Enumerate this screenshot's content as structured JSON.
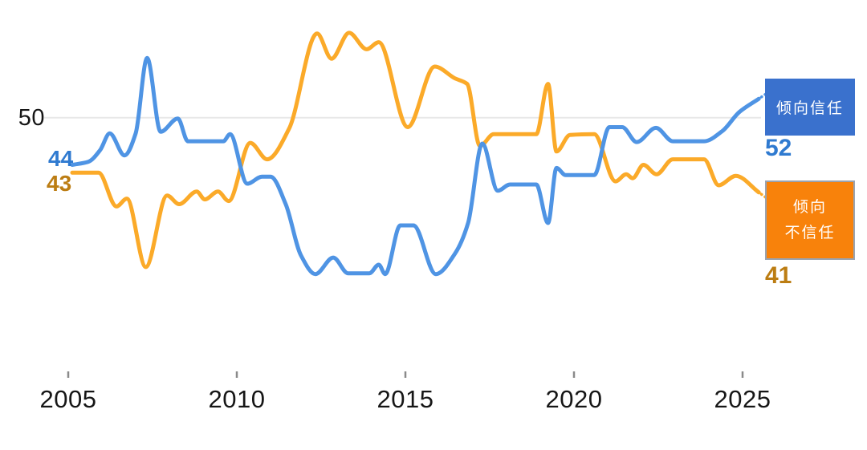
{
  "y_axis": {
    "gridline_label": "50"
  },
  "series_labels": {
    "trust_start": "44",
    "distrust_start": "43",
    "trust_end": "52",
    "distrust_end": "41"
  },
  "legend": {
    "trust": "倾向信任",
    "distrust_line1": "倾向",
    "distrust_line2": "不信任"
  },
  "colors": {
    "trust_line": "#4f94e4",
    "distrust_line": "#fbaa29",
    "trust_box": "#3a71cd",
    "distrust_box": "#f8820b",
    "distrust_box_border": "#9aa3b0",
    "trust_value_text": "#2f7ad0",
    "distrust_value_text": "#bc7d13",
    "axis_text": "#161616",
    "gridline": "#e8e8e8",
    "tick": "#8a8a8a"
  },
  "chart_data": {
    "type": "line",
    "title": "",
    "xlabel": "",
    "ylabel": "",
    "x_ticks": [
      2005,
      2010,
      2015,
      2020,
      2025
    ],
    "x_tick_labels": [
      "2005",
      "2010",
      "2015",
      "2020",
      "2025"
    ],
    "x_range": [
      2005.1,
      2025.5
    ],
    "ylim_visible": [
      29,
      62
    ],
    "y_gridline": 50,
    "grid": "single horizontal gridline at y=50",
    "legend_position": "right",
    "series": [
      {
        "name": "倾向不信任",
        "color_key": "distrust_line",
        "start_value": 43,
        "end_value": 41,
        "points": [
          [
            2005.12,
            43.0
          ],
          [
            2005.9,
            43.0
          ],
          [
            2006.43,
            38.7
          ],
          [
            2006.74,
            39.7
          ],
          [
            2007.3,
            31.0
          ],
          [
            2007.93,
            40.1
          ],
          [
            2008.29,
            39.0
          ],
          [
            2008.81,
            40.6
          ],
          [
            2009.05,
            39.6
          ],
          [
            2009.44,
            40.6
          ],
          [
            2009.76,
            39.4
          ],
          [
            2010.4,
            46.8
          ],
          [
            2010.9,
            44.7
          ],
          [
            2011.55,
            48.6
          ],
          [
            2012.38,
            60.7
          ],
          [
            2012.81,
            57.5
          ],
          [
            2013.33,
            60.8
          ],
          [
            2013.85,
            58.7
          ],
          [
            2014.21,
            59.6
          ],
          [
            2015.07,
            48.8
          ],
          [
            2015.87,
            56.5
          ],
          [
            2016.47,
            55.0
          ],
          [
            2016.83,
            54.3
          ],
          [
            2017.21,
            46.4
          ],
          [
            2017.62,
            47.9
          ],
          [
            2018.88,
            47.9
          ],
          [
            2019.23,
            54.3
          ],
          [
            2019.48,
            45.7
          ],
          [
            2019.88,
            47.8
          ],
          [
            2020.6,
            47.9
          ],
          [
            2021.23,
            41.9
          ],
          [
            2021.55,
            42.8
          ],
          [
            2021.74,
            42.3
          ],
          [
            2022.06,
            44.0
          ],
          [
            2022.45,
            42.8
          ],
          [
            2022.93,
            44.7
          ],
          [
            2023.86,
            44.7
          ],
          [
            2024.29,
            41.4
          ],
          [
            2024.8,
            42.6
          ],
          [
            2025.48,
            40.5
          ]
        ]
      },
      {
        "name": "倾向信任",
        "color_key": "trust_line",
        "start_value": 44,
        "end_value": 52,
        "points": [
          [
            2005.12,
            44.0
          ],
          [
            2005.6,
            44.4
          ],
          [
            2005.95,
            45.9
          ],
          [
            2006.23,
            48.0
          ],
          [
            2006.67,
            45.2
          ],
          [
            2007.0,
            48.0
          ],
          [
            2007.34,
            57.6
          ],
          [
            2007.74,
            48.2
          ],
          [
            2008.25,
            49.9
          ],
          [
            2008.55,
            47.0
          ],
          [
            2009.6,
            47.0
          ],
          [
            2009.8,
            47.9
          ],
          [
            2010.31,
            41.6
          ],
          [
            2010.75,
            42.5
          ],
          [
            2011.0,
            42.5
          ],
          [
            2011.45,
            39.0
          ],
          [
            2011.9,
            32.5
          ],
          [
            2012.33,
            30.1
          ],
          [
            2012.86,
            32.2
          ],
          [
            2013.3,
            30.2
          ],
          [
            2013.93,
            30.2
          ],
          [
            2014.21,
            31.3
          ],
          [
            2014.4,
            30.1
          ],
          [
            2014.85,
            36.3
          ],
          [
            2015.24,
            36.3
          ],
          [
            2015.9,
            30.1
          ],
          [
            2016.47,
            32.7
          ],
          [
            2016.86,
            36.6
          ],
          [
            2017.28,
            46.7
          ],
          [
            2017.74,
            40.7
          ],
          [
            2018.1,
            41.5
          ],
          [
            2018.88,
            41.5
          ],
          [
            2019.23,
            36.6
          ],
          [
            2019.48,
            43.6
          ],
          [
            2019.75,
            42.7
          ],
          [
            2020.6,
            42.7
          ],
          [
            2021.05,
            48.8
          ],
          [
            2021.43,
            48.8
          ],
          [
            2021.86,
            46.9
          ],
          [
            2022.43,
            48.7
          ],
          [
            2022.93,
            47.0
          ],
          [
            2023.86,
            47.0
          ],
          [
            2024.4,
            48.3
          ],
          [
            2024.9,
            50.7
          ],
          [
            2025.48,
            52.4
          ]
        ]
      }
    ]
  }
}
